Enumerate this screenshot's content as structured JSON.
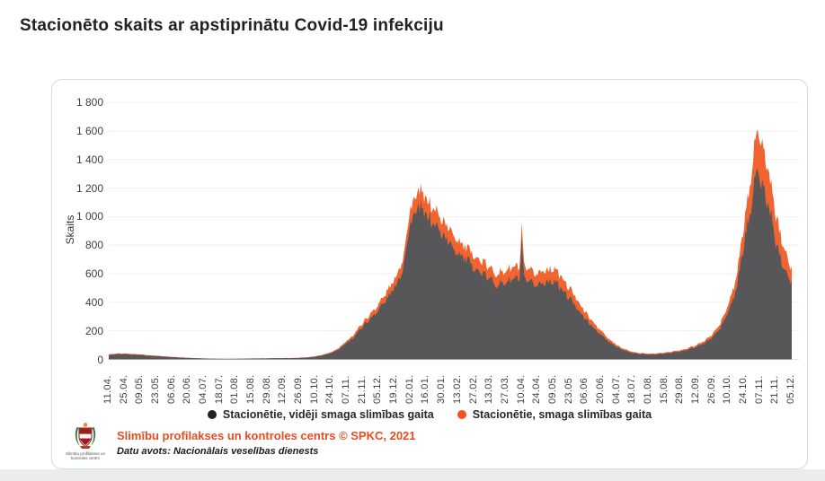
{
  "page": {
    "title": "Stacionēto skaits ar apstiprinātu Covid-19 infekciju"
  },
  "chart_data": {
    "type": "area",
    "stacked": true,
    "title": "Stacionēto skaits ar apstiprinātu Covid-19 infekciju",
    "xlabel": "",
    "ylabel": "Skaits",
    "ylim": [
      0,
      1800
    ],
    "ytick_step": 200,
    "yticks": [
      "0",
      "200",
      "400",
      "600",
      "800",
      "1 000",
      "1 200",
      "1 400",
      "1 600",
      "1 800"
    ],
    "grid": true,
    "legend_position": "bottom",
    "x_unit": "days since 11.04.2020, daily data",
    "x_domain_days": [
      0,
      602
    ],
    "xtick_interval_days": 14,
    "xticks": [
      "11.04.",
      "25.04.",
      "09.05.",
      "23.05.",
      "06.06.",
      "20.06.",
      "04.07.",
      "18.07.",
      "01.08.",
      "15.08.",
      "29.08.",
      "12.09.",
      "26.09.",
      "10.10.",
      "24.10.",
      "07.11.",
      "21.11.",
      "05.12.",
      "19.12.",
      "02.01.",
      "16.01.",
      "30.01.",
      "13.02.",
      "27.02.",
      "13.03.",
      "27.03.",
      "10.04.",
      "24.04.",
      "09.05.",
      "23.05",
      "06.06",
      "20.06.",
      "04.07.",
      "18.07.",
      "01.08.",
      "15.08.",
      "29.08.",
      "12.09.",
      "26.09.",
      "10.10.",
      "24.10.",
      "07.11.",
      "21.11.",
      "05.12."
    ],
    "series": [
      {
        "name": "Stacionētie, vidēji smaga slimības gaita",
        "color": "#57575a",
        "legend_dot_color": "#212121",
        "points": [
          [
            0,
            30
          ],
          [
            7,
            35
          ],
          [
            14,
            37
          ],
          [
            21,
            33
          ],
          [
            28,
            32
          ],
          [
            35,
            26
          ],
          [
            42,
            23
          ],
          [
            49,
            19
          ],
          [
            56,
            16
          ],
          [
            63,
            12
          ],
          [
            70,
            10
          ],
          [
            77,
            8
          ],
          [
            84,
            6
          ],
          [
            91,
            5
          ],
          [
            98,
            4
          ],
          [
            105,
            4
          ],
          [
            112,
            4
          ],
          [
            119,
            5
          ],
          [
            126,
            6
          ],
          [
            133,
            6
          ],
          [
            140,
            7
          ],
          [
            147,
            8
          ],
          [
            154,
            9
          ],
          [
            161,
            9
          ],
          [
            168,
            10
          ],
          [
            175,
            13
          ],
          [
            182,
            19
          ],
          [
            189,
            29
          ],
          [
            196,
            44
          ],
          [
            203,
            71
          ],
          [
            210,
            116
          ],
          [
            217,
            165
          ],
          [
            224,
            234
          ],
          [
            231,
            287
          ],
          [
            238,
            350
          ],
          [
            245,
            422
          ],
          [
            252,
            502
          ],
          [
            259,
            628
          ],
          [
            266,
            960
          ],
          [
            273,
            1055
          ],
          [
            280,
            1010
          ],
          [
            287,
            945
          ],
          [
            294,
            880
          ],
          [
            301,
            805
          ],
          [
            308,
            750
          ],
          [
            315,
            695
          ],
          [
            322,
            645
          ],
          [
            329,
            600
          ],
          [
            336,
            560
          ],
          [
            343,
            525
          ],
          [
            350,
            540
          ],
          [
            357,
            565
          ],
          [
            362,
            555
          ],
          [
            364,
            840
          ],
          [
            366,
            555
          ],
          [
            371,
            535
          ],
          [
            378,
            520
          ],
          [
            385,
            545
          ],
          [
            393,
            550
          ],
          [
            400,
            480
          ],
          [
            406,
            430
          ],
          [
            413,
            360
          ],
          [
            420,
            282
          ],
          [
            427,
            222
          ],
          [
            434,
            172
          ],
          [
            441,
            120
          ],
          [
            448,
            86
          ],
          [
            455,
            60
          ],
          [
            462,
            44
          ],
          [
            469,
            38
          ],
          [
            476,
            34
          ],
          [
            483,
            36
          ],
          [
            490,
            41
          ],
          [
            497,
            47
          ],
          [
            504,
            56
          ],
          [
            511,
            70
          ],
          [
            518,
            88
          ],
          [
            525,
            114
          ],
          [
            532,
            153
          ],
          [
            539,
            218
          ],
          [
            546,
            330
          ],
          [
            553,
            480
          ],
          [
            560,
            810
          ],
          [
            564,
            975
          ],
          [
            567,
            1130
          ],
          [
            569,
            1240
          ],
          [
            571,
            1330
          ],
          [
            574,
            1240
          ],
          [
            578,
            1180
          ],
          [
            581,
            1080
          ],
          [
            585,
            960
          ],
          [
            588,
            815
          ],
          [
            592,
            720
          ],
          [
            595,
            660
          ],
          [
            598,
            600
          ],
          [
            602,
            550
          ]
        ]
      },
      {
        "name": "Stacionētie, smaga slimības gaita",
        "color": "#f2642f",
        "legend_dot_color": "#f4511e",
        "points": [
          [
            0,
            5
          ],
          [
            7,
            5
          ],
          [
            14,
            5
          ],
          [
            21,
            5
          ],
          [
            28,
            4
          ],
          [
            35,
            4
          ],
          [
            42,
            3
          ],
          [
            49,
            3
          ],
          [
            56,
            2
          ],
          [
            63,
            2
          ],
          [
            70,
            1
          ],
          [
            77,
            1
          ],
          [
            84,
            1
          ],
          [
            91,
            1
          ],
          [
            98,
            1
          ],
          [
            105,
            1
          ],
          [
            112,
            1
          ],
          [
            119,
            1
          ],
          [
            126,
            1
          ],
          [
            133,
            1
          ],
          [
            140,
            1
          ],
          [
            147,
            1
          ],
          [
            154,
            1
          ],
          [
            161,
            1
          ],
          [
            168,
            2
          ],
          [
            175,
            2
          ],
          [
            182,
            3
          ],
          [
            189,
            4
          ],
          [
            196,
            6
          ],
          [
            203,
            9
          ],
          [
            210,
            14
          ],
          [
            217,
            20
          ],
          [
            224,
            26
          ],
          [
            231,
            33
          ],
          [
            238,
            40
          ],
          [
            245,
            48
          ],
          [
            252,
            58
          ],
          [
            259,
            72
          ],
          [
            266,
            100
          ],
          [
            273,
            115
          ],
          [
            280,
            110
          ],
          [
            287,
            105
          ],
          [
            294,
            100
          ],
          [
            301,
            95
          ],
          [
            308,
            90
          ],
          [
            315,
            85
          ],
          [
            322,
            85
          ],
          [
            329,
            80
          ],
          [
            336,
            80
          ],
          [
            343,
            75
          ],
          [
            350,
            80
          ],
          [
            357,
            85
          ],
          [
            362,
            85
          ],
          [
            364,
            90
          ],
          [
            366,
            85
          ],
          [
            371,
            85
          ],
          [
            378,
            80
          ],
          [
            385,
            85
          ],
          [
            393,
            90
          ],
          [
            400,
            80
          ],
          [
            406,
            70
          ],
          [
            413,
            60
          ],
          [
            420,
            48
          ],
          [
            427,
            38
          ],
          [
            434,
            28
          ],
          [
            441,
            20
          ],
          [
            448,
            14
          ],
          [
            455,
            10
          ],
          [
            462,
            8
          ],
          [
            469,
            6
          ],
          [
            476,
            6
          ],
          [
            483,
            6
          ],
          [
            490,
            7
          ],
          [
            497,
            8
          ],
          [
            504,
            9
          ],
          [
            511,
            10
          ],
          [
            518,
            12
          ],
          [
            525,
            16
          ],
          [
            532,
            22
          ],
          [
            539,
            32
          ],
          [
            546,
            50
          ],
          [
            553,
            80
          ],
          [
            560,
            140
          ],
          [
            564,
            175
          ],
          [
            567,
            220
          ],
          [
            569,
            260
          ],
          [
            571,
            290
          ],
          [
            574,
            280
          ],
          [
            578,
            270
          ],
          [
            581,
            250
          ],
          [
            585,
            220
          ],
          [
            588,
            185
          ],
          [
            592,
            160
          ],
          [
            595,
            140
          ],
          [
            598,
            120
          ],
          [
            602,
            90
          ]
        ]
      }
    ],
    "style": {
      "grid_color": "#f1f1f1",
      "baseline_color": "#e6e6e6",
      "daily_noise": true,
      "noise_amplitude": 0.05
    }
  },
  "footer": {
    "logo_caption_line1": "Slimību profilakses un",
    "logo_caption_line2": "kontroles centrs",
    "credit": "Slimību profilakses un kontroles centrs © SPKC, 2021",
    "source": "Datu avots: Nacionālais veselības dienests"
  }
}
